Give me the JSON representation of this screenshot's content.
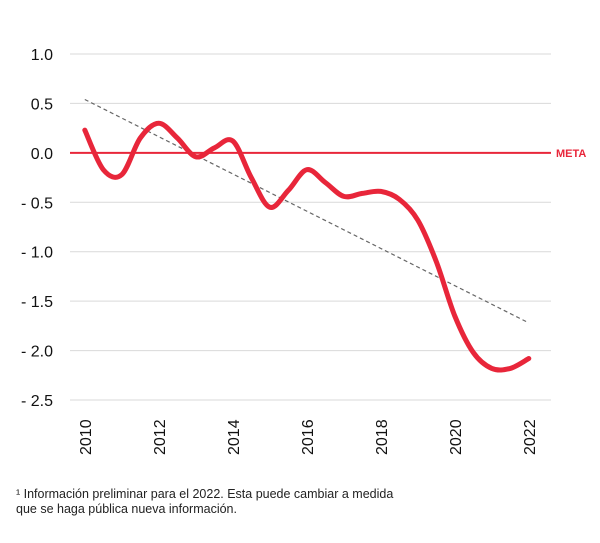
{
  "chart_data": {
    "type": "line",
    "x": [
      2010,
      2010.5,
      2011,
      2011.5,
      2012,
      2012.5,
      2013,
      2013.5,
      2014,
      2014.5,
      2015,
      2015.5,
      2016,
      2016.5,
      2017,
      2017.5,
      2018,
      2018.5,
      2019,
      2019.5,
      2020,
      2020.5,
      2021,
      2021.5,
      2022
    ],
    "series": [
      {
        "values": [
          0.23,
          -0.17,
          -0.22,
          0.15,
          0.3,
          0.15,
          -0.04,
          0.05,
          0.12,
          -0.25,
          -0.55,
          -0.38,
          -0.17,
          -0.3,
          -0.44,
          -0.41,
          -0.39,
          -0.47,
          -0.68,
          -1.1,
          -1.65,
          -2.02,
          -2.18,
          -2.18,
          -2.08
        ],
        "color": "#e8263a"
      }
    ],
    "trend": {
      "x": [
        2010,
        2022
      ],
      "values": [
        0.54,
        -1.72
      ],
      "color": "#666666",
      "style": "dashed"
    },
    "reference_line": {
      "value": 0.0,
      "label": "META",
      "color": "#e8263a"
    },
    "ylim": [
      -2.5,
      1.0
    ],
    "xlim": [
      2009.6,
      2022.6
    ],
    "yticks": [
      1.0,
      0.5,
      0.0,
      -0.5,
      -1.0,
      -1.5,
      -2.0,
      -2.5
    ],
    "ytick_labels": [
      "1.0",
      "0.5",
      "0.0",
      "- 0.5",
      "- 1.0",
      "- 1.5",
      "- 2.0",
      "- 2.5"
    ],
    "xticks": [
      2010,
      2012,
      2014,
      2016,
      2018,
      2020,
      2022
    ],
    "xtick_labels": [
      "2010",
      "2012",
      "2014",
      "2016",
      "2018",
      "2020",
      "2022"
    ],
    "grid": true,
    "title": "",
    "xlabel": "",
    "ylabel": ""
  },
  "footnote": {
    "line1": "¹ Información preliminar para el 2022. Esta puede cambiar a medida",
    "line2": "que se haga pública nueva información."
  }
}
